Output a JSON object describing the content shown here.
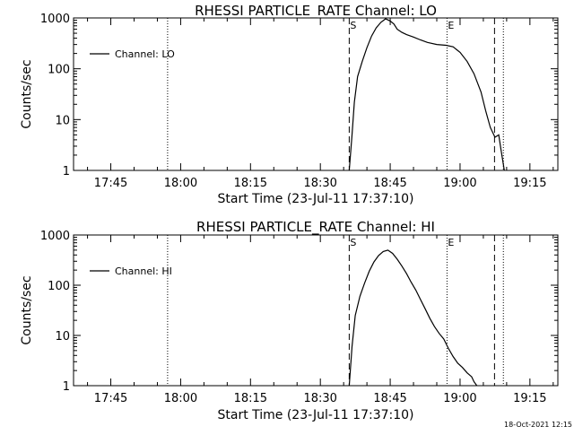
{
  "timestamp": "18-Oct-2021 12:15",
  "chart_data": [
    {
      "type": "line",
      "title": "RHESSI PARTICLE_RATE Channel: LO",
      "xlabel": "Start Time (23-Jul-11 17:37:10)",
      "ylabel": "Counts/sec",
      "y_scale": "log",
      "ylim": [
        1,
        1000
      ],
      "xlim_minutes_since_1730": [
        7,
        111
      ],
      "x_ticks": [
        {
          "label": "17:45",
          "minute": 15
        },
        {
          "label": "18:00",
          "minute": 30
        },
        {
          "label": "18:15",
          "minute": 45
        },
        {
          "label": "18:30",
          "minute": 60
        },
        {
          "label": "18:45",
          "minute": 75
        },
        {
          "label": "19:00",
          "minute": 90
        },
        {
          "label": "19:15",
          "minute": 105
        }
      ],
      "y_ticks": [
        {
          "label": "1",
          "value": 1
        },
        {
          "label": "10",
          "value": 10
        },
        {
          "label": "100",
          "value": 100
        },
        {
          "label": "1000",
          "value": 1000
        }
      ],
      "grid": false,
      "legend": {
        "position": "top-left",
        "entries": [
          "Channel: LO"
        ]
      },
      "dotted_lines_minutes": [
        27.2,
        87.2,
        99.3
      ],
      "dashed_lines": [
        {
          "minute": 66.2,
          "marker": "S"
        },
        {
          "minute": 97.4,
          "marker": ""
        }
      ],
      "marker_labels": [
        {
          "text": "S",
          "minute": 66.2
        },
        {
          "text": "E",
          "minute": 87.2
        }
      ],
      "series": [
        {
          "name": "Channel: LO",
          "x_minutes": [
            66.2,
            66.8,
            67.3,
            68.0,
            69.0,
            70.0,
            71.0,
            72.0,
            73.0,
            74.0,
            75.0,
            75.8,
            76.5,
            77.5,
            78.5,
            80.0,
            81.5,
            83.0,
            85.0,
            87.0,
            88.5,
            90.0,
            91.5,
            93.0,
            94.5,
            95.5,
            96.5,
            97.5,
            98.3,
            98.8,
            99.5
          ],
          "y": [
            1,
            5,
            22,
            70,
            140,
            260,
            440,
            640,
            820,
            960,
            870,
            760,
            600,
            520,
            470,
            420,
            370,
            330,
            300,
            290,
            270,
            210,
            140,
            80,
            35,
            15,
            7,
            4.5,
            5,
            2.5,
            1
          ]
        }
      ]
    },
    {
      "type": "line",
      "title": "RHESSI PARTICLE_RATE Channel: HI",
      "xlabel": "Start Time (23-Jul-11 17:37:10)",
      "ylabel": "Counts/sec",
      "y_scale": "log",
      "ylim": [
        1,
        1000
      ],
      "xlim_minutes_since_1730": [
        7,
        111
      ],
      "x_ticks": [
        {
          "label": "17:45",
          "minute": 15
        },
        {
          "label": "18:00",
          "minute": 30
        },
        {
          "label": "18:15",
          "minute": 45
        },
        {
          "label": "18:30",
          "minute": 60
        },
        {
          "label": "18:45",
          "minute": 75
        },
        {
          "label": "19:00",
          "minute": 90
        },
        {
          "label": "19:15",
          "minute": 105
        }
      ],
      "y_ticks": [
        {
          "label": "1",
          "value": 1
        },
        {
          "label": "10",
          "value": 10
        },
        {
          "label": "100",
          "value": 100
        },
        {
          "label": "1000",
          "value": 1000
        }
      ],
      "grid": false,
      "legend": {
        "position": "top-left",
        "entries": [
          "Channel: HI"
        ]
      },
      "dotted_lines_minutes": [
        27.2,
        87.2,
        99.3
      ],
      "dashed_lines": [
        {
          "minute": 66.2,
          "marker": "S"
        },
        {
          "minute": 97.4,
          "marker": ""
        }
      ],
      "marker_labels": [
        {
          "text": "S",
          "minute": 66.2
        },
        {
          "text": "E",
          "minute": 87.2
        }
      ],
      "series": [
        {
          "name": "Channel: HI",
          "x_minutes": [
            66.2,
            66.8,
            67.5,
            68.5,
            69.5,
            70.5,
            71.5,
            72.5,
            73.5,
            74.5,
            75.5,
            76.5,
            77.5,
            78.5,
            79.5,
            80.5,
            81.5,
            82.5,
            83.5,
            84.5,
            85.5,
            86.5,
            87.5,
            88.5,
            89.5,
            90.5,
            91.5,
            92.5,
            93.0,
            93.6
          ],
          "y": [
            1,
            6,
            25,
            60,
            110,
            190,
            290,
            390,
            470,
            500,
            430,
            330,
            240,
            170,
            115,
            80,
            52,
            34,
            22,
            15,
            11,
            8.5,
            5.5,
            3.8,
            2.8,
            2.3,
            1.8,
            1.5,
            1.2,
            1
          ]
        }
      ]
    }
  ]
}
